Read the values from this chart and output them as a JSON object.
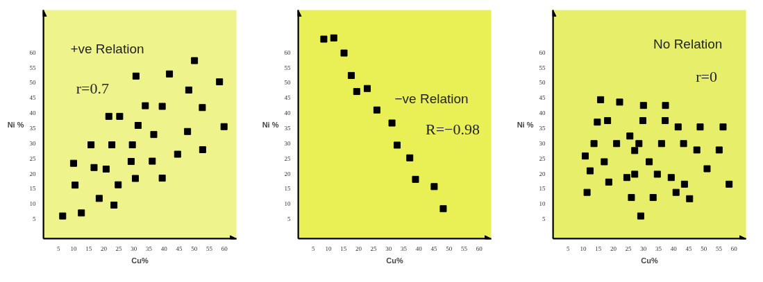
{
  "chart_data": [
    {
      "type": "scatter",
      "xlabel": "Cu%",
      "ylabel": "Ni %",
      "annotations": [
        "+ve Relation",
        "r=0.7"
      ],
      "marker": "square",
      "grid": false,
      "xlim": [
        0,
        64
      ],
      "ylim": [
        -1.5,
        74
      ],
      "xticks": [
        5,
        10,
        15,
        20,
        25,
        30,
        35,
        40,
        45,
        50,
        55,
        60
      ],
      "yticks": [
        5,
        10,
        15,
        20,
        25,
        30,
        35,
        40,
        45,
        50,
        55,
        60
      ],
      "series": [
        {
          "color": "#000000",
          "x": [
            6.4,
            10.0,
            10.5,
            12.6,
            15.8,
            16.8,
            18.5,
            20.8,
            21.7,
            22.7,
            23.4,
            24.8,
            25.3,
            29.1,
            29.5,
            30.5,
            30.7,
            31.4,
            33.8,
            36.1,
            36.6,
            39.4,
            39.4,
            41.8,
            44.5,
            47.8,
            48.2,
            50.1,
            52.7,
            52.8,
            58.4,
            59.9
          ],
          "values": [
            6.0,
            23.4,
            16.2,
            7.0,
            29.5,
            22.0,
            11.8,
            21.5,
            38.9,
            29.5,
            9.6,
            16.3,
            38.9,
            24.0,
            29.5,
            18.4,
            52.2,
            35.9,
            42.4,
            24.1,
            32.9,
            18.5,
            42.2,
            52.9,
            26.4,
            33.9,
            47.6,
            57.3,
            41.8,
            27.9,
            50.3,
            35.5
          ]
        }
      ]
    },
    {
      "type": "scatter",
      "xlabel": "Cu%",
      "ylabel": "Ni %",
      "annotations": [
        "−ve   Relation",
        "R=−0.98"
      ],
      "marker": "square",
      "grid": false,
      "xlim": [
        0,
        64
      ],
      "ylim": [
        -1.5,
        74
      ],
      "xticks": [
        5,
        10,
        15,
        20,
        25,
        30,
        35,
        40,
        45,
        50,
        55,
        60
      ],
      "yticks": [
        5,
        10,
        15,
        20,
        25,
        30,
        35,
        40,
        45,
        50,
        55,
        60
      ],
      "series": [
        {
          "color": "#000000",
          "x": [
            8.5,
            11.8,
            15.2,
            17.6,
            19.4,
            22.9,
            26.1,
            31.1,
            32.8,
            37.0,
            38.9,
            45.1,
            48.1
          ],
          "values": [
            64.4,
            64.8,
            59.8,
            52.4,
            47.1,
            48.1,
            41.0,
            36.7,
            29.4,
            25.2,
            18.1,
            15.7,
            8.4
          ]
        }
      ]
    },
    {
      "type": "scatter",
      "xlabel": "Cu%",
      "ylabel": "Ni %",
      "annotations": [
        "No Relation",
        "r=0"
      ],
      "marker": "square",
      "grid": false,
      "xlim": [
        0,
        64
      ],
      "ylim": [
        -1.5,
        74
      ],
      "xticks": [
        5,
        10,
        15,
        20,
        25,
        30,
        35,
        40,
        45,
        50,
        55,
        60
      ],
      "yticks": [
        5,
        10,
        15,
        20,
        25,
        30,
        35,
        40,
        45,
        50,
        55,
        60
      ],
      "series": [
        {
          "color": "#000000",
          "x": [
            10.7,
            11.3,
            12.3,
            13.6,
            14.7,
            15.8,
            17.0,
            18.1,
            18.5,
            21.1,
            22.1,
            24.5,
            25.5,
            26.0,
            27.1,
            27.1,
            28.5,
            29.1,
            29.8,
            30.0,
            31.9,
            33.2,
            34.6,
            36.0,
            37.2,
            37.3,
            39.2,
            40.8,
            41.5,
            43.3,
            43.6,
            45.3,
            47.7,
            48.8,
            51.1,
            55.1,
            56.4,
            58.4
          ],
          "values": [
            25.8,
            13.8,
            20.9,
            29.9,
            37.0,
            44.4,
            23.9,
            37.5,
            17.2,
            29.9,
            43.6,
            18.7,
            32.4,
            12.1,
            27.6,
            19.8,
            29.9,
            6.0,
            37.5,
            42.5,
            23.9,
            12.1,
            19.8,
            29.9,
            37.5,
            42.5,
            18.7,
            13.8,
            35.4,
            29.9,
            16.5,
            11.7,
            27.8,
            35.4,
            21.6,
            27.8,
            35.4,
            16.5
          ]
        }
      ]
    }
  ]
}
